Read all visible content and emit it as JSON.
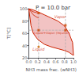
{
  "chart_data": {
    "type": "line",
    "title": "P = 10.0 bar",
    "xlabel": "NH3 mass frac. (wNH3)",
    "ylabel": "T[°C]",
    "xlim": [
      0.0,
      1.0
    ],
    "ylim": [
      20,
      100
    ],
    "xticks": [
      {
        "value": 0.0,
        "label": "0.0"
      },
      0.2,
      0.4,
      0.6,
      0.8,
      {
        "value": 1.0,
        "label": "1.0"
      }
    ],
    "yticks": [
      20,
      40,
      60,
      80,
      100
    ],
    "grid": false,
    "series": [
      {
        "type": "line",
        "color": "#cc2200",
        "x": [
          0.0,
          0.1,
          0.2,
          0.35,
          0.5,
          0.65,
          0.8,
          0.9,
          0.98,
          1.0
        ],
        "values": [
          100,
          98,
          95,
          90,
          85,
          80,
          72,
          60,
          45,
          24
        ]
      },
      {
        "type": "line",
        "color": "#cc2200",
        "x": [
          0.0,
          0.05,
          0.1,
          0.2,
          0.35,
          0.5,
          0.65,
          0.8,
          0.9,
          0.98,
          1.0
        ],
        "values": [
          100,
          72,
          60,
          50,
          42,
          38,
          35,
          32,
          29,
          25,
          24
        ]
      },
      {
        "type": "fill",
        "color": "#f0b8b8",
        "between": [
          0,
          1
        ]
      },
      {
        "type": "line",
        "color": "#cc2200",
        "x": [
          0.0,
          0.05,
          0.1,
          0.15,
          0.2
        ],
        "values": [
          100,
          97,
          95,
          94,
          93
        ]
      },
      {
        "type": "line",
        "color": "#cc2200",
        "x": [
          0.0,
          0.05,
          0.1,
          0.16,
          0.22
        ],
        "values": [
          100,
          95,
          90,
          87,
          85
        ]
      },
      {
        "type": "hline",
        "y": 65,
        "color": "#aaaaaa",
        "line_style": "dashed"
      },
      {
        "type": "vline",
        "x": 0.22,
        "color": "#aaaaaa",
        "line_style": "dashed"
      },
      {
        "type": "vline",
        "x": 0.82,
        "color": "#aaaaaa",
        "line_style": "dashed"
      },
      {
        "type": "scatter",
        "marker": "square",
        "color": "#cc4400",
        "x": [
          0.22,
          0.82,
          0.22,
          0.82
        ],
        "values": [
          65,
          65,
          93,
          73
        ]
      },
      {
        "type": "scatter",
        "marker": "circle",
        "color": "#cc6600",
        "x": [
          0.22
        ],
        "values": [
          38
        ]
      }
    ],
    "annotations": [
      {
        "text": "Vapor",
        "x": 0.7,
        "y": 87,
        "color": "#cc2200"
      },
      {
        "text": "Liquid",
        "x": 0.22,
        "y": 34,
        "color": "#cc2200"
      },
      {
        "text": "Liquid+Vapor (equilib.)",
        "x": 0.52,
        "y": 61,
        "color": "#cc2200"
      }
    ]
  }
}
